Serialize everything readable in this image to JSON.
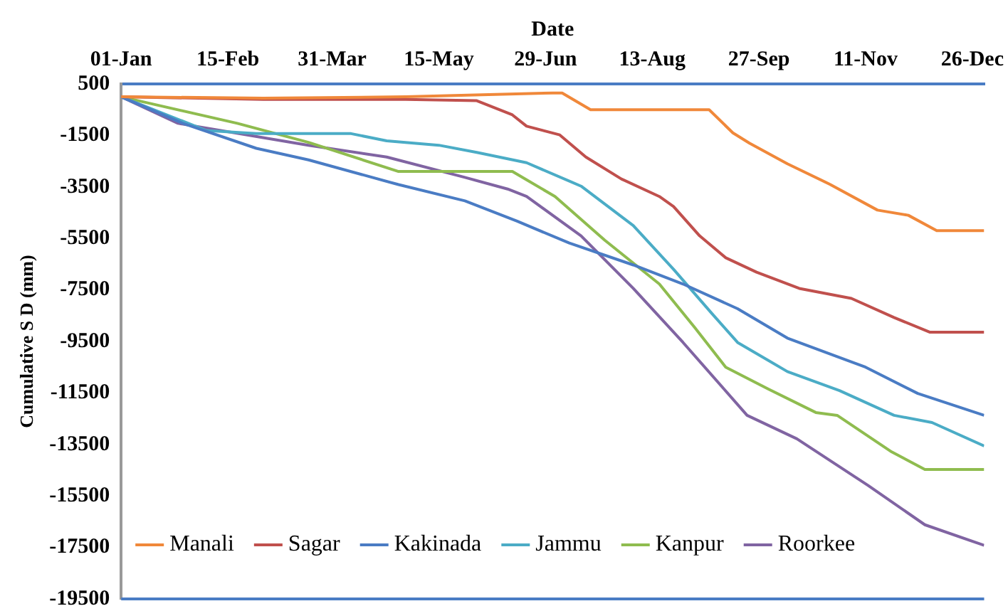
{
  "chart_data": {
    "type": "line",
    "xlabel": "Date",
    "ylabel": "Cumulative S D (mm)",
    "xlim": [
      "--01-01",
      "--12-31"
    ],
    "xticks": [
      {
        "value": "--01-01",
        "label": "01-Jan"
      },
      {
        "value": "--02-15",
        "label": "15-Feb"
      },
      {
        "value": "--03-31",
        "label": "31-Mar"
      },
      {
        "value": "--05-15",
        "label": "15-May"
      },
      {
        "value": "--06-29",
        "label": "29-Jun"
      },
      {
        "value": "--08-13",
        "label": "13-Aug"
      },
      {
        "value": "--09-27",
        "label": "27-Sep"
      },
      {
        "value": "--11-11",
        "label": "11-Nov"
      },
      {
        "value": "--12-26",
        "label": "26-Dec"
      }
    ],
    "ylim": [
      -19500,
      500
    ],
    "yticks": [
      500,
      -1500,
      -3500,
      -5500,
      -7500,
      -9500,
      -11500,
      -13500,
      -15500,
      -17500,
      -19500
    ],
    "grid": false,
    "legend": "bottom",
    "marker": "none",
    "line_style": "solid",
    "series": [
      {
        "name": "Manali",
        "color": "#f0883a",
        "x": [
          "--01-01",
          "--03-02",
          "--05-01",
          "--07-02",
          "--07-06",
          "--07-18",
          "--09-06",
          "--09-16",
          "--09-23",
          "--10-09",
          "--10-27",
          "--11-16",
          "--11-29",
          "--12-11",
          "--12-31"
        ],
        "values": [
          0,
          -50,
          0,
          150,
          150,
          -500,
          -500,
          -1400,
          -1800,
          -2600,
          -3400,
          -4400,
          -4600,
          -5200,
          -5200
        ]
      },
      {
        "name": "Sagar",
        "color": "#c0504d",
        "x": [
          "--01-01",
          "--03-02",
          "--05-01",
          "--05-31",
          "--06-15",
          "--06-21",
          "--07-05",
          "--07-16",
          "--07-31",
          "--08-16",
          "--08-22",
          "--09-02",
          "--09-13",
          "--09-26",
          "--10-14",
          "--11-05",
          "--11-23",
          "--12-08",
          "--12-31"
        ],
        "values": [
          0,
          -100,
          -100,
          -150,
          -700,
          -1140,
          -1480,
          -2340,
          -3190,
          -3870,
          -4260,
          -5400,
          -6250,
          -6810,
          -7440,
          -7830,
          -8570,
          -9140,
          -9140
        ]
      },
      {
        "name": "Kakinada",
        "color": "#4a7cc4",
        "x": [
          "--01-01",
          "--01-27",
          "--02-27",
          "--03-21",
          "--04-28",
          "--05-26",
          "--06-17",
          "--07-09",
          "--08-05",
          "--08-26",
          "--09-18",
          "--10-09",
          "--11-11",
          "--12-03",
          "--12-31"
        ],
        "values": [
          0,
          -1030,
          -2000,
          -2450,
          -3410,
          -4040,
          -4830,
          -5680,
          -6530,
          -7270,
          -8230,
          -9370,
          -10500,
          -11520,
          -12370
        ]
      },
      {
        "name": "Jammu",
        "color": "#4bacc6",
        "x": [
          "--01-01",
          "--02-06",
          "--02-27",
          "--04-08",
          "--04-23",
          "--05-15",
          "--05-31",
          "--06-21",
          "--07-14",
          "--08-05",
          "--08-22",
          "--09-07",
          "--09-18",
          "--10-09",
          "--10-31",
          "--11-23",
          "--12-09",
          "--12-31"
        ],
        "values": [
          0,
          -1310,
          -1430,
          -1430,
          -1710,
          -1880,
          -2160,
          -2560,
          -3470,
          -5000,
          -6700,
          -8400,
          -9540,
          -10670,
          -11410,
          -12370,
          -12650,
          -13560
        ]
      },
      {
        "name": "Kanpur",
        "color": "#8fbc4f",
        "x": [
          "--01-01",
          "--02-19",
          "--03-21",
          "--04-28",
          "--06-15",
          "--07-03",
          "--07-24",
          "--08-16",
          "--08-31",
          "--09-13",
          "--10-01",
          "--10-21",
          "--10-30",
          "--11-22",
          "--12-06",
          "--12-31"
        ],
        "values": [
          0,
          -1030,
          -1770,
          -2900,
          -2900,
          -3870,
          -5570,
          -7270,
          -8970,
          -10500,
          -11350,
          -12260,
          -12370,
          -13790,
          -14470,
          -14470
        ]
      },
      {
        "name": "Roorkee",
        "color": "#8064a2",
        "x": [
          "--01-01",
          "--01-25",
          "--03-21",
          "--04-23",
          "--05-26",
          "--06-13",
          "--06-21",
          "--07-14",
          "--08-05",
          "--08-26",
          "--09-22",
          "--10-13",
          "--11-12",
          "--12-06",
          "--12-31"
        ],
        "values": [
          0,
          -1030,
          -1880,
          -2340,
          -3130,
          -3580,
          -3870,
          -5400,
          -7440,
          -9540,
          -12370,
          -13280,
          -15090,
          -16620,
          -17420
        ]
      }
    ]
  }
}
